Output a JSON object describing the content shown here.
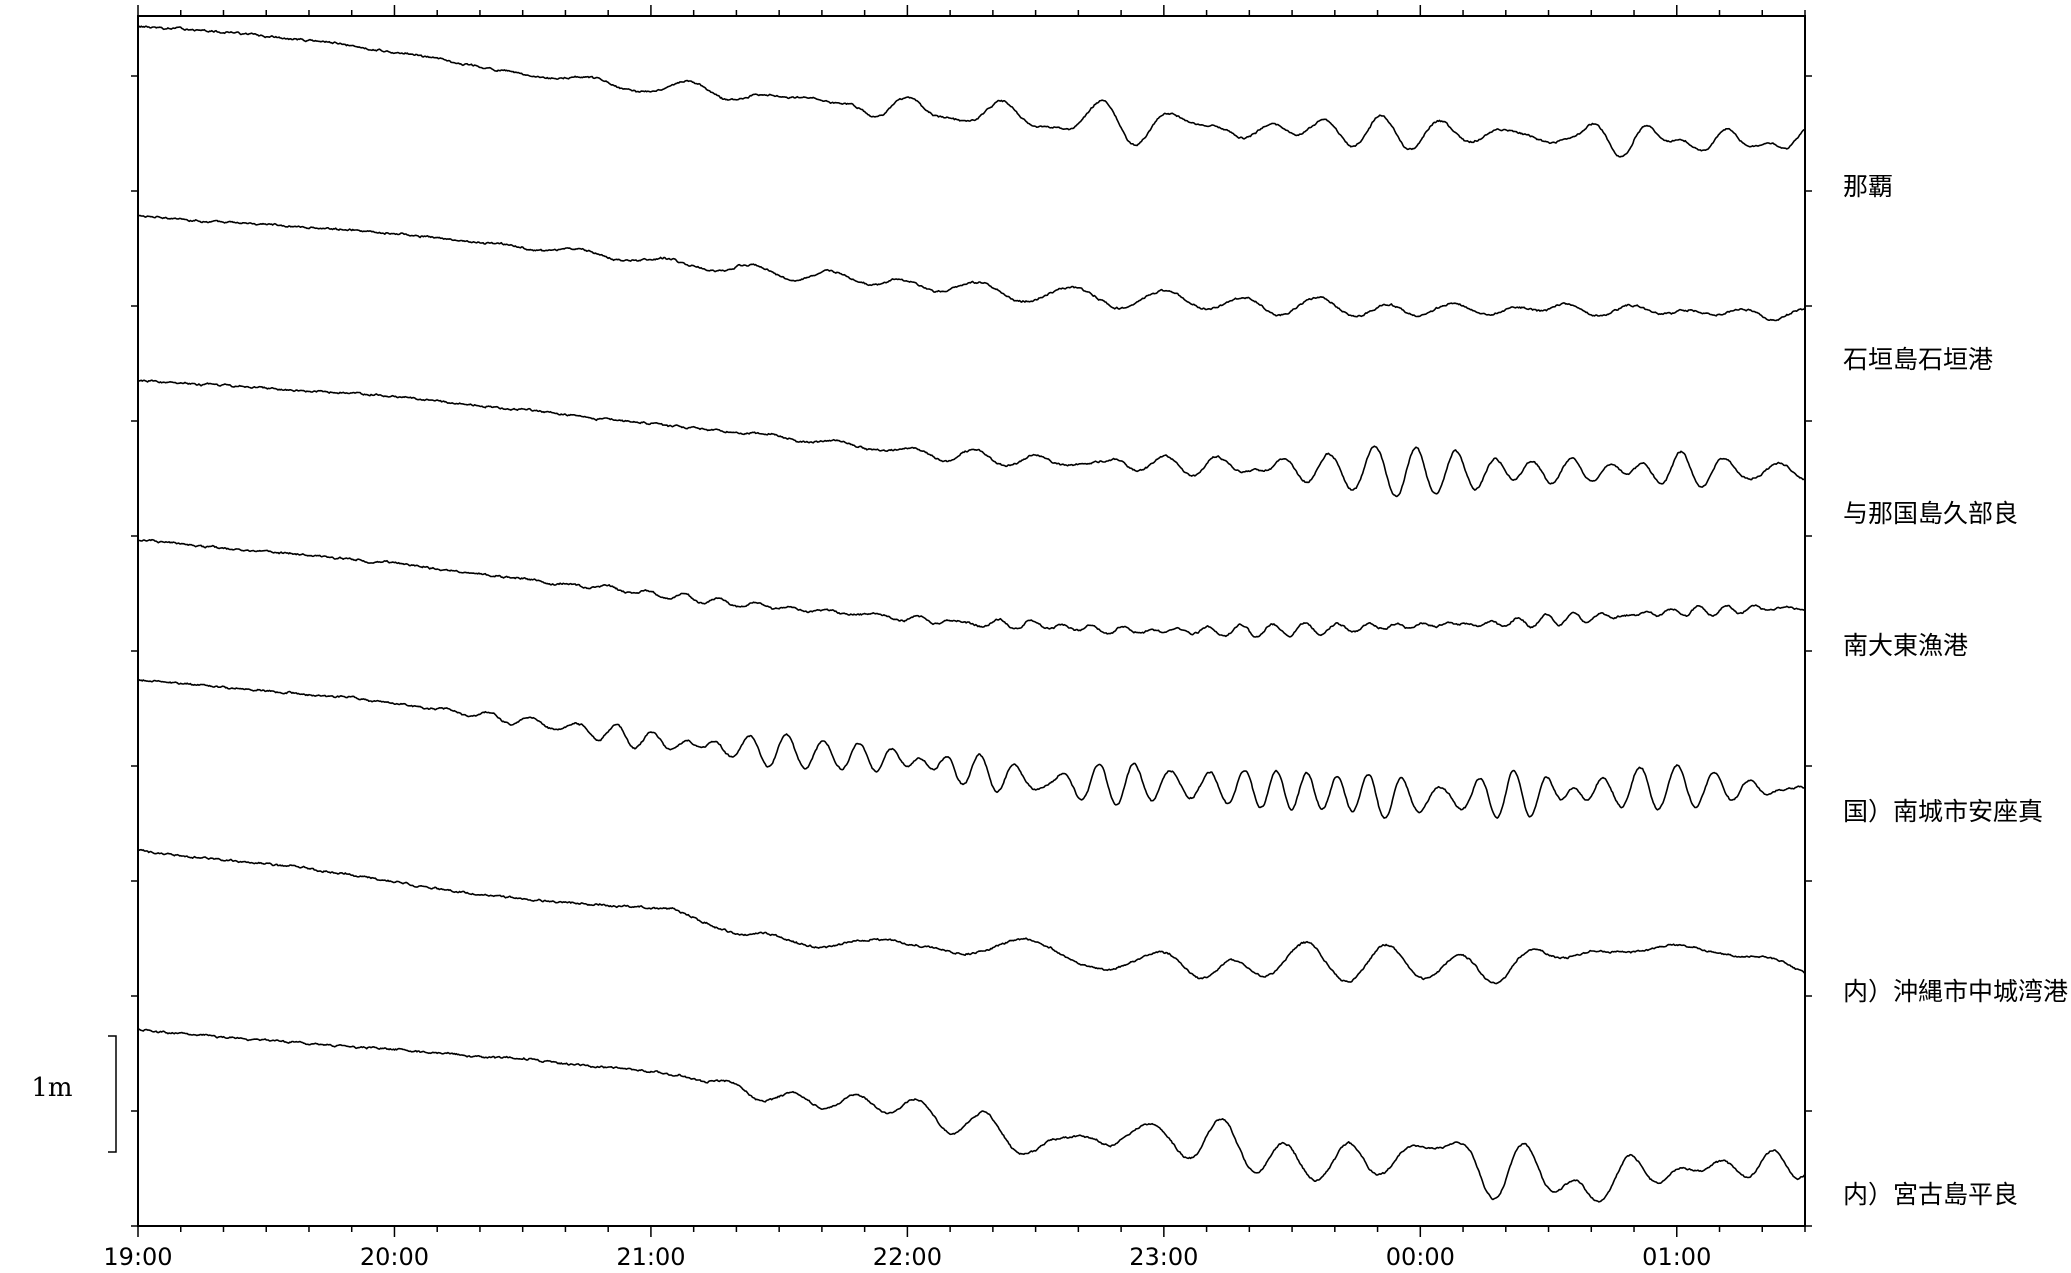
{
  "chart_data": {
    "type": "line",
    "title": "",
    "xlabel": "",
    "ylabel": "",
    "grid": false,
    "x_tick_labels": [
      "19:00",
      "20:00",
      "21:00",
      "22:00",
      "23:00",
      "00:00",
      "01:00"
    ],
    "x_range_minutes": [
      0,
      390
    ],
    "y_unit": "m",
    "scale_bar": {
      "label": "1m",
      "value_m": 1.0
    },
    "minor_tick_interval_min": 10,
    "series": [
      {
        "name": "那覇",
        "trend": [
          [
            0,
            0
          ],
          [
            20,
            -0.05
          ],
          [
            45,
            -0.14
          ],
          [
            70,
            -0.28
          ],
          [
            90,
            -0.42
          ],
          [
            110,
            -0.5
          ],
          [
            140,
            -0.58
          ],
          [
            180,
            -0.72
          ],
          [
            210,
            -0.8
          ],
          [
            240,
            -0.85
          ],
          [
            270,
            -0.9
          ],
          [
            300,
            -0.92
          ],
          [
            330,
            -0.95
          ],
          [
            360,
            -0.98
          ],
          [
            390,
            -1.0
          ]
        ],
        "waves": [
          [
            138,
            0.5,
            25,
            0.4,
            0.05
          ],
          [
            165,
            0.25,
            18,
            1.1,
            0.04
          ],
          [
            200,
            0.4,
            12,
            2.0,
            0.04
          ],
          [
            228,
            0.65,
            22,
            0.3,
            0.09
          ],
          [
            250,
            0.5,
            14,
            1.5,
            0.06
          ],
          [
            270,
            0.7,
            16,
            0.8,
            0.08
          ],
          [
            300,
            0.65,
            14,
            2.6,
            0.06
          ],
          [
            330,
            0.7,
            13,
            0.4,
            0.05
          ],
          [
            360,
            0.75,
            17,
            1.9,
            0.07
          ],
          [
            380,
            0.9,
            10,
            0.7,
            0.06
          ]
        ]
      },
      {
        "name": "石垣島石垣港",
        "trend": [
          [
            0,
            0
          ],
          [
            60,
            -0.15
          ],
          [
            100,
            -0.3
          ],
          [
            130,
            -0.42
          ],
          [
            170,
            -0.55
          ],
          [
            210,
            -0.68
          ],
          [
            240,
            -0.72
          ],
          [
            270,
            -0.78
          ],
          [
            300,
            -0.82
          ],
          [
            330,
            -0.8
          ],
          [
            360,
            -0.82
          ],
          [
            390,
            -0.85
          ]
        ],
        "waves": [
          [
            130,
            0.3,
            20,
            0.5,
            0.03
          ],
          [
            180,
            0.5,
            18,
            1.8,
            0.03
          ],
          [
            225,
            0.6,
            24,
            0.6,
            0.04
          ],
          [
            260,
            0.5,
            20,
            2.0,
            0.06
          ],
          [
            300,
            0.6,
            18,
            0.2,
            0.06
          ],
          [
            330,
            0.7,
            16,
            1.3,
            0.05
          ],
          [
            365,
            0.7,
            14,
            2.7,
            0.05
          ]
        ]
      },
      {
        "name": "与那国島久部良",
        "trend": [
          [
            0,
            0
          ],
          [
            60,
            -0.14
          ],
          [
            100,
            -0.3
          ],
          [
            140,
            -0.45
          ],
          [
            180,
            -0.62
          ],
          [
            210,
            -0.7
          ],
          [
            240,
            -0.73
          ],
          [
            270,
            -0.76
          ],
          [
            300,
            -0.8
          ],
          [
            330,
            -0.78
          ],
          [
            360,
            -0.78
          ],
          [
            390,
            -0.78
          ]
        ],
        "waves": [
          [
            180,
            0.5,
            16,
            0.3,
            0.02
          ],
          [
            220,
            0.6,
            14,
            1.6,
            0.04
          ],
          [
            260,
            0.6,
            12,
            0.9,
            0.06
          ],
          [
            300,
            0.7,
            10,
            2.1,
            0.1
          ],
          [
            330,
            0.7,
            9,
            0.5,
            0.11
          ],
          [
            360,
            0.8,
            12,
            1.7,
            0.07
          ]
        ]
      },
      {
        "name": "南大東漁港",
        "trend": [
          [
            0,
            0
          ],
          [
            60,
            -0.2
          ],
          [
            100,
            -0.38
          ],
          [
            140,
            -0.55
          ],
          [
            180,
            -0.68
          ],
          [
            230,
            -0.78
          ],
          [
            260,
            -0.78
          ],
          [
            290,
            -0.75
          ],
          [
            320,
            -0.72
          ],
          [
            360,
            -0.62
          ],
          [
            390,
            -0.58
          ]
        ],
        "waves": [
          [
            140,
            0.5,
            9,
            0.3,
            0.02
          ],
          [
            165,
            0.5,
            8,
            1.9,
            0.02
          ],
          [
            200,
            0.5,
            10,
            1.0,
            0.015
          ],
          [
            230,
            0.55,
            7,
            2.5,
            0.03
          ],
          [
            260,
            0.5,
            8,
            0.6,
            0.02
          ],
          [
            300,
            0.5,
            7,
            1.4,
            0.025
          ],
          [
            340,
            0.6,
            6,
            2.2,
            0.025
          ],
          [
            375,
            0.6,
            7,
            0.9,
            0.02
          ]
        ]
      },
      {
        "name": "国）南城市安座真",
        "trend": [
          [
            0,
            0
          ],
          [
            50,
            -0.15
          ],
          [
            90,
            -0.35
          ],
          [
            120,
            -0.52
          ],
          [
            150,
            -0.62
          ],
          [
            180,
            -0.68
          ],
          [
            210,
            -0.88
          ],
          [
            240,
            -0.9
          ],
          [
            270,
            -0.95
          ],
          [
            300,
            -1.02
          ],
          [
            330,
            -0.98
          ],
          [
            360,
            -0.92
          ],
          [
            390,
            -0.95
          ]
        ],
        "waves": [
          [
            115,
            0.5,
            10,
            0.4,
            0.04
          ],
          [
            145,
            0.45,
            8,
            1.7,
            0.06
          ],
          [
            180,
            0.5,
            9,
            2.5,
            0.06
          ],
          [
            210,
            0.45,
            7,
            0.9,
            0.06
          ],
          [
            235,
            0.5,
            9,
            2.0,
            0.06
          ],
          [
            265,
            0.55,
            8,
            0.3,
            0.11
          ],
          [
            295,
            0.55,
            7,
            1.2,
            0.1
          ],
          [
            320,
            0.6,
            9,
            2.6,
            0.12
          ],
          [
            350,
            0.6,
            8,
            1.5,
            0.1
          ],
          [
            380,
            0.6,
            9,
            0.7,
            0.08
          ]
        ]
      },
      {
        "name": "内）沖縄市中城湾港",
        "trend": [
          [
            0,
            0
          ],
          [
            40,
            -0.15
          ],
          [
            80,
            -0.38
          ],
          [
            110,
            -0.47
          ],
          [
            125,
            -0.5
          ],
          [
            140,
            -0.72
          ],
          [
            155,
            -0.78
          ],
          [
            175,
            -0.8
          ],
          [
            200,
            -0.82
          ],
          [
            220,
            -0.9
          ],
          [
            240,
            -1.0
          ],
          [
            260,
            -0.98
          ],
          [
            280,
            -0.95
          ],
          [
            300,
            -1.0
          ],
          [
            320,
            -1.0
          ],
          [
            340,
            -0.85
          ],
          [
            370,
            -0.85
          ],
          [
            390,
            -1.02
          ]
        ],
        "waves": [
          [
            180,
            0.6,
            28,
            0.4,
            0.04
          ],
          [
            230,
            0.7,
            30,
            1.6,
            0.1
          ],
          [
            285,
            0.6,
            18,
            0.3,
            0.14
          ],
          [
            320,
            0.8,
            30,
            2.2,
            0.05
          ],
          [
            360,
            0.8,
            20,
            1.0,
            0.03
          ]
        ]
      },
      {
        "name": "内）宮古島平良",
        "trend": [
          [
            0,
            0
          ],
          [
            40,
            -0.12
          ],
          [
            80,
            -0.22
          ],
          [
            110,
            -0.32
          ],
          [
            130,
            -0.4
          ],
          [
            150,
            -0.6
          ],
          [
            170,
            -0.62
          ],
          [
            190,
            -0.75
          ],
          [
            210,
            -1.0
          ],
          [
            230,
            -0.9
          ],
          [
            250,
            -0.95
          ],
          [
            280,
            -1.2
          ],
          [
            300,
            -1.0
          ],
          [
            320,
            -1.2
          ],
          [
            340,
            -1.35
          ],
          [
            360,
            -1.2
          ],
          [
            390,
            -1.15
          ]
        ],
        "waves": [
          [
            175,
            0.5,
            15,
            0.3,
            0.06
          ],
          [
            220,
            0.6,
            18,
            1.4,
            0.08
          ],
          [
            250,
            0.6,
            16,
            2.1,
            0.06
          ],
          [
            285,
            0.6,
            14,
            0.8,
            0.1
          ],
          [
            315,
            0.7,
            22,
            2.6,
            0.12
          ],
          [
            350,
            0.7,
            12,
            1.6,
            0.11
          ],
          [
            375,
            0.8,
            14,
            0.5,
            0.09
          ]
        ]
      }
    ]
  }
}
